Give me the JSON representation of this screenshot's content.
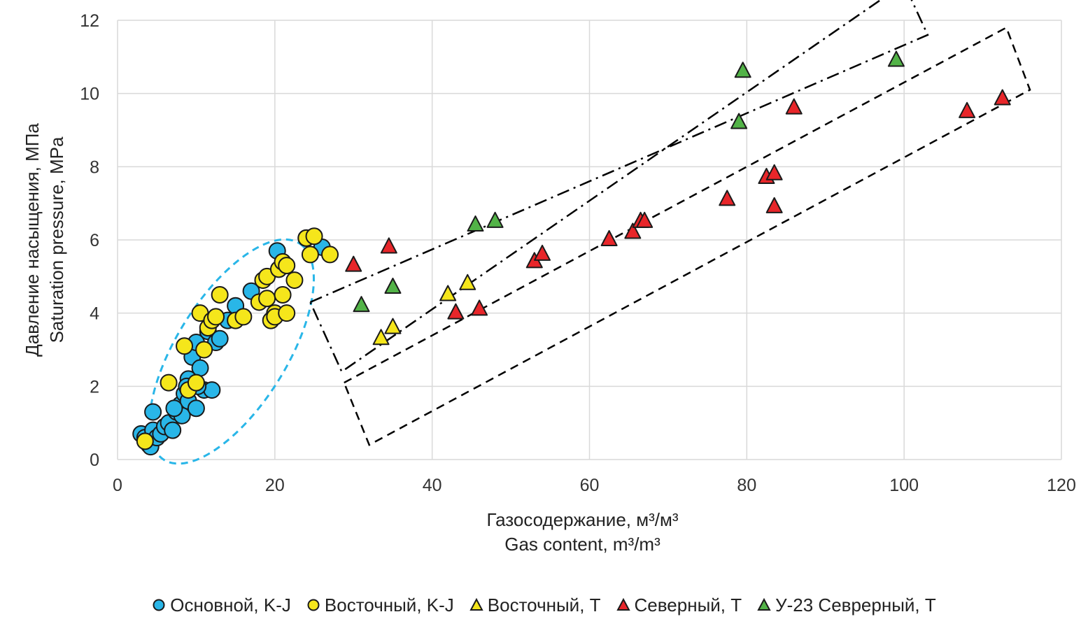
{
  "chart_data": {
    "type": "scatter",
    "title": "",
    "xlabel": [
      "Газосодержание, м³/м³",
      "Gas content, m³/m³"
    ],
    "ylabel": [
      "Давление насыщения, МПа",
      "Saturation pressure, MPa"
    ],
    "xlim": [
      0,
      120
    ],
    "ylim": [
      0,
      12
    ],
    "x_ticks": [
      "0",
      "20",
      "40",
      "60",
      "80",
      "100",
      "120"
    ],
    "y_ticks": [
      "0",
      "2",
      "4",
      "6",
      "8",
      "10",
      "12"
    ],
    "grid": "vertical-and-horizontal",
    "legend_position": "bottom",
    "series": [
      {
        "name": "Основной, K-J",
        "marker": "circle",
        "color": "#29b6e8",
        "points": [
          [
            3.0,
            0.7
          ],
          [
            3.5,
            0.6
          ],
          [
            3.8,
            0.5
          ],
          [
            4.0,
            0.4
          ],
          [
            4.2,
            0.35
          ],
          [
            4.5,
            0.8
          ],
          [
            5.0,
            0.6
          ],
          [
            5.5,
            0.7
          ],
          [
            6.0,
            0.9
          ],
          [
            6.5,
            1.0
          ],
          [
            7.0,
            0.8
          ],
          [
            7.5,
            1.3
          ],
          [
            8.0,
            1.5
          ],
          [
            8.2,
            1.2
          ],
          [
            8.5,
            1.8
          ],
          [
            9.0,
            2.2
          ],
          [
            9.0,
            1.6
          ],
          [
            9.5,
            2.8
          ],
          [
            10.0,
            3.2
          ],
          [
            10.0,
            1.4
          ],
          [
            10.5,
            2.5
          ],
          [
            11.0,
            1.9
          ],
          [
            11.5,
            3.5
          ],
          [
            12.0,
            1.9
          ],
          [
            12.5,
            3.2
          ],
          [
            13.0,
            3.3
          ],
          [
            14.0,
            3.8
          ],
          [
            15.0,
            4.2
          ],
          [
            17.0,
            4.6
          ],
          [
            20.3,
            5.7
          ],
          [
            24.0,
            6.05
          ],
          [
            26.0,
            5.8
          ],
          [
            4.5,
            1.3
          ],
          [
            7.2,
            1.4
          ],
          [
            8.8,
            2.0
          ],
          [
            10.2,
            2.0
          ]
        ]
      },
      {
        "name": "Восточный, K-J",
        "marker": "circle",
        "color": "#f5e61b",
        "points": [
          [
            3.5,
            0.5
          ],
          [
            6.5,
            2.1
          ],
          [
            8.5,
            3.1
          ],
          [
            9.0,
            1.9
          ],
          [
            10.0,
            2.1
          ],
          [
            10.5,
            4.0
          ],
          [
            11.0,
            3.0
          ],
          [
            11.5,
            3.6
          ],
          [
            12.0,
            3.8
          ],
          [
            12.5,
            3.9
          ],
          [
            13.0,
            4.5
          ],
          [
            15.0,
            3.8
          ],
          [
            16.0,
            3.9
          ],
          [
            18.0,
            4.3
          ],
          [
            18.5,
            4.9
          ],
          [
            19.0,
            5.0
          ],
          [
            19.0,
            4.4
          ],
          [
            19.5,
            3.8
          ],
          [
            20.0,
            4.0
          ],
          [
            20.0,
            3.9
          ],
          [
            20.5,
            5.2
          ],
          [
            21.0,
            5.4
          ],
          [
            21.0,
            4.5
          ],
          [
            21.5,
            4.0
          ],
          [
            21.5,
            5.3
          ],
          [
            22.5,
            4.9
          ],
          [
            24.0,
            6.05
          ],
          [
            24.5,
            5.6
          ],
          [
            25.0,
            6.1
          ],
          [
            27.0,
            5.6
          ]
        ]
      },
      {
        "name": "Восточный, Т",
        "marker": "triangle",
        "color": "#f5e61b",
        "points": [
          [
            33.5,
            3.3
          ],
          [
            35.0,
            3.6
          ],
          [
            42.0,
            4.5
          ],
          [
            44.5,
            4.8
          ]
        ]
      },
      {
        "name": "Северный, Т",
        "marker": "triangle",
        "color": "#e8262a",
        "points": [
          [
            30.0,
            5.3
          ],
          [
            34.5,
            5.8
          ],
          [
            43.0,
            4.0
          ],
          [
            46.0,
            4.1
          ],
          [
            53.0,
            5.4
          ],
          [
            54.0,
            5.6
          ],
          [
            62.5,
            6.0
          ],
          [
            65.5,
            6.2
          ],
          [
            66.5,
            6.5
          ],
          [
            67.0,
            6.5
          ],
          [
            77.5,
            7.1
          ],
          [
            82.5,
            7.7
          ],
          [
            83.5,
            7.8
          ],
          [
            83.5,
            6.9
          ],
          [
            86.0,
            9.6
          ],
          [
            108.0,
            9.5
          ],
          [
            112.5,
            9.85
          ]
        ]
      },
      {
        "name": "У-23 Севрерный, Т",
        "marker": "triangle",
        "color": "#52b347",
        "points": [
          [
            31.0,
            4.2
          ],
          [
            35.0,
            4.7
          ],
          [
            45.5,
            6.4
          ],
          [
            48.0,
            6.5
          ],
          [
            79.0,
            9.2
          ],
          [
            79.5,
            10.6
          ],
          [
            99.0,
            10.9
          ]
        ]
      }
    ],
    "annotations": [
      {
        "type": "ellipse",
        "style": "dashed",
        "color": "#29b6e8",
        "label": "",
        "bounds": {
          "x": [
            2,
            27
          ],
          "y": [
            -0.8,
            6.7
          ]
        }
      },
      {
        "type": "rectangle",
        "style": "dashdot",
        "color": "#000000",
        "label": "",
        "corners": [
          [
            24.5,
            4.3
          ],
          [
            103,
            11.6
          ],
          [
            100,
            13.0
          ],
          [
            28.5,
            2.4
          ]
        ]
      },
      {
        "type": "rectangle",
        "style": "dashed",
        "color": "#000000",
        "label": "",
        "corners": [
          [
            28.8,
            2.1
          ],
          [
            113,
            11.8
          ],
          [
            116,
            10.1
          ],
          [
            32.0,
            0.4
          ]
        ]
      }
    ]
  }
}
